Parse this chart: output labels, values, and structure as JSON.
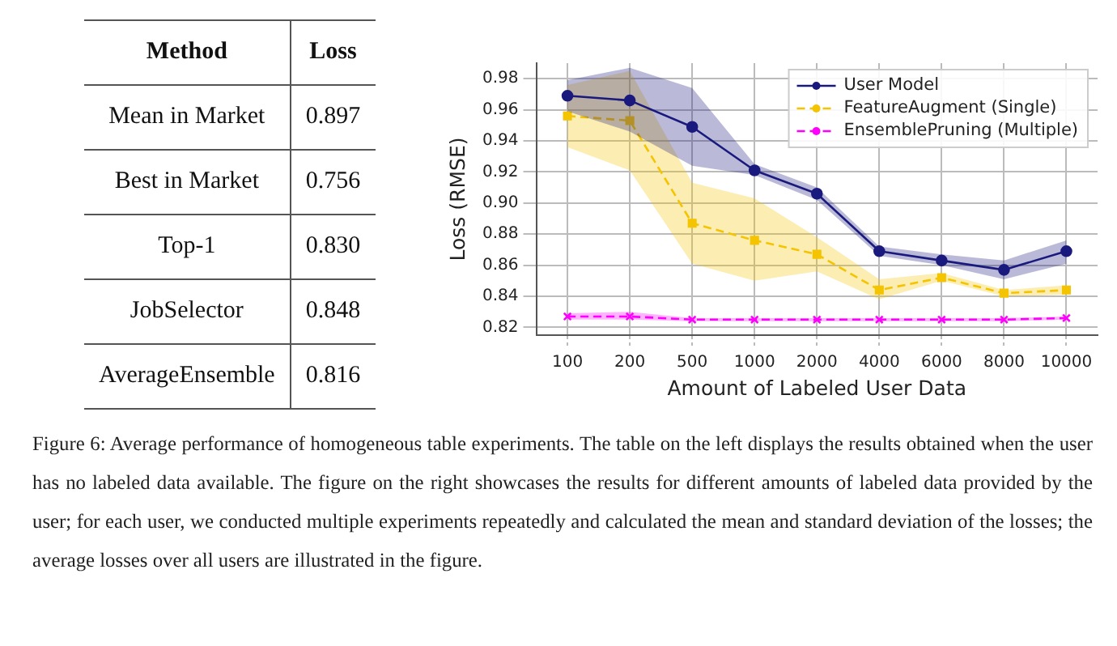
{
  "chart_data": [
    {
      "type": "other",
      "xlabel": "Method",
      "ylabel": "Loss",
      "categories": [
        "Mean in Market",
        "Best in Market",
        "Top-1",
        "JobSelector",
        "AverageEnsemble"
      ],
      "values": [
        0.897,
        0.756,
        0.83,
        0.848,
        0.816
      ],
      "value_labels": [
        "0.897",
        "0.756",
        "0.830",
        "0.848",
        "0.816"
      ]
    },
    {
      "type": "line",
      "xlabel": "Amount of Labeled User Data",
      "ylabel": "Loss (RMSE)",
      "categories": [
        "100",
        "200",
        "500",
        "1000",
        "2000",
        "4000",
        "6000",
        "8000",
        "10000"
      ],
      "series": [
        {
          "name": "User Model",
          "color": "#1a1a7e",
          "marker": "circle",
          "line_style": "solid",
          "values": [
            0.969,
            0.966,
            0.949,
            0.921,
            0.906,
            0.869,
            0.863,
            0.857,
            0.869
          ],
          "lower": [
            0.959,
            0.946,
            0.924,
            0.918,
            0.902,
            0.866,
            0.86,
            0.851,
            0.861
          ],
          "upper": [
            0.979,
            0.987,
            0.974,
            0.925,
            0.91,
            0.872,
            0.867,
            0.863,
            0.876
          ]
        },
        {
          "name": "FeatureAugment (Single)",
          "color": "#f5c400",
          "marker": "square",
          "line_style": "dashed",
          "values": [
            0.956,
            0.953,
            0.887,
            0.876,
            0.867,
            0.844,
            0.852,
            0.842,
            0.844
          ],
          "lower": [
            0.936,
            0.921,
            0.861,
            0.85,
            0.856,
            0.838,
            0.85,
            0.84,
            0.841
          ],
          "upper": [
            0.976,
            0.985,
            0.913,
            0.903,
            0.878,
            0.851,
            0.855,
            0.844,
            0.847
          ]
        },
        {
          "name": "EnsemblePruning (Multiple)",
          "color": "#ff00ff",
          "marker": "cross",
          "line_style": "dashed",
          "values": [
            0.827,
            0.827,
            0.825,
            0.825,
            0.825,
            0.825,
            0.825,
            0.825,
            0.826
          ],
          "lower": [
            0.825,
            0.825,
            0.824,
            0.824,
            0.824,
            0.824,
            0.824,
            0.824,
            0.825
          ],
          "upper": [
            0.829,
            0.83,
            0.826,
            0.826,
            0.826,
            0.826,
            0.826,
            0.826,
            0.827
          ]
        }
      ],
      "ylim": [
        0.815,
        0.99
      ],
      "yticks": [
        0.82,
        0.84,
        0.86,
        0.88,
        {
          "value": 0.9,
          "label": "0.90"
        },
        0.92,
        0.94,
        0.96,
        0.98
      ],
      "grid": true,
      "legend": "top right",
      "annotations": [
        "Figure 6: Average performance of homogeneous table experiments. The table on the left displays the results obtained when the user has no labeled data available. The figure on the right showcases the results for different amounts of labeled data provided by the user; for each user, we conducted multiple experiments repeatedly and calculated the mean and standard deviation of the losses; the average losses over all users are illustrated in the figure."
      ]
    }
  ]
}
